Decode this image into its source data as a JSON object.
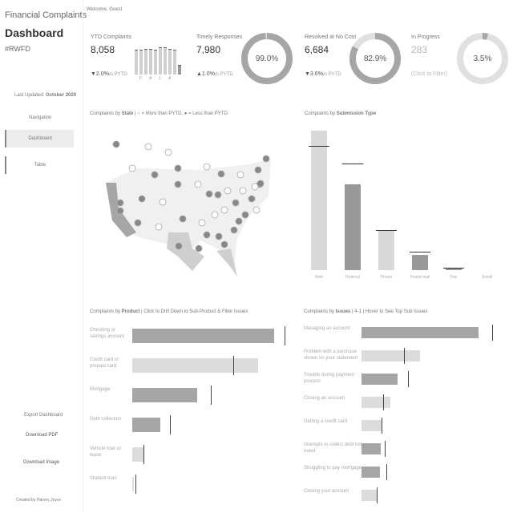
{
  "sidebar": {
    "title": "Financial Complaints",
    "subtitle": "Dashboard",
    "hashtag": "#RWFD",
    "updated_label": "Last Updated:",
    "updated": "October 2020",
    "nav_title": "Navigation",
    "nav": [
      "Dashboard",
      "Table"
    ],
    "export_title": "Export Dashboard",
    "export": [
      "Download PDF",
      "Download Image"
    ],
    "credit": "Created by Harvey Joyce"
  },
  "welcome": "Welcome, Guest",
  "kpis": [
    {
      "label": "YTD Complaints",
      "value": "8,058",
      "change": "▼2.0%",
      "vs": "vs PYTD"
    },
    {
      "label": "Timely Responses",
      "value": "7,980",
      "change": "▲1.0%",
      "vs": "vs PYTD",
      "donut": {
        "value": 99.0,
        "label": "99.0%"
      }
    },
    {
      "label": "Resolved at No Cost",
      "value": "6,684",
      "change": "▼3.6%",
      "vs": "vs PYTD",
      "donut": {
        "value": 82.9,
        "label": "82.9%"
      }
    },
    {
      "label": "In Progress",
      "value": "283",
      "change": "(Click to Filter)",
      "donut": {
        "value": 3.5,
        "label": "3.5%"
      }
    }
  ],
  "monthly": {
    "categories": [
      null,
      "F",
      null,
      "A",
      null,
      "J",
      null,
      "A",
      null,
      null
    ],
    "values": [
      820,
      810,
      830,
      850,
      820,
      880,
      900,
      850,
      820,
      300
    ],
    "ylim": [
      0,
      1000
    ]
  },
  "map": {
    "title": {
      "prefix": "Complaints by ",
      "bold": "State",
      "suffix": " | "
    },
    "legend": [
      "= More than PYTD,",
      "= Less than PYTD"
    ]
  },
  "submission": {
    "title": {
      "prefix": "Complaints by ",
      "bold": "Submission Type"
    },
    "categories": [
      "Web",
      "Referral",
      "Phone",
      "Postal mail",
      "Fax",
      "Email"
    ],
    "values": [
      5800,
      3570,
      1630,
      630,
      100,
      0
    ],
    "pytd": [
      5170,
      4430,
      1670,
      770,
      100,
      null
    ],
    "colors": [
      "#d9d9d9",
      "#999999",
      "#d9d9d9",
      "#999999",
      "#999999",
      "#d9d9d9"
    ],
    "ylim": [
      0,
      6000
    ]
  },
  "product": {
    "title": {
      "prefix": "Complaints by ",
      "bold": "Product",
      "suffix": " | Click to Drill Down to Sub-Product & Filter Issues"
    },
    "categories": [
      "Checking or savings account",
      "Credit card or prepaid card",
      "Mortgage",
      "Debt collection",
      "Vehicle loan or lease",
      "Student loan"
    ],
    "values": [
      2124,
      1884,
      972,
      420,
      168,
      24
    ],
    "pytd": [
      2280,
      1512,
      1176,
      564,
      168,
      48
    ],
    "colors": [
      "#a6a6a6",
      "#dcdcdc",
      "#a6a6a6",
      "#a6a6a6",
      "#dcdcdc",
      "#dcdcdc"
    ],
    "xlim": [
      0,
      2400
    ]
  },
  "issues": {
    "title": {
      "prefix": "Complaints by ",
      "bold": "Issues",
      "suffix": " | 4-1 | Hover to See Top Sub Issues"
    },
    "categories": [
      "Managing an account",
      "Problem with a purchase shown on your statement",
      "Trouble during payment process",
      "Closing an account",
      "Getting a credit card",
      "Attempts to collect debt not owed",
      "Struggling to pay mortgage",
      "Closing your account"
    ],
    "values": [
      1752,
      876,
      540,
      432,
      312,
      288,
      276,
      240
    ],
    "pytd": [
      1956,
      636,
      696,
      324,
      300,
      348,
      372,
      228
    ],
    "colors": [
      "#a6a6a6",
      "#dcdcdc",
      "#a6a6a6",
      "#dcdcdc",
      "#dcdcdc",
      "#a6a6a6",
      "#a6a6a6",
      "#dcdcdc"
    ],
    "xlim": [
      0,
      2400
    ]
  }
}
